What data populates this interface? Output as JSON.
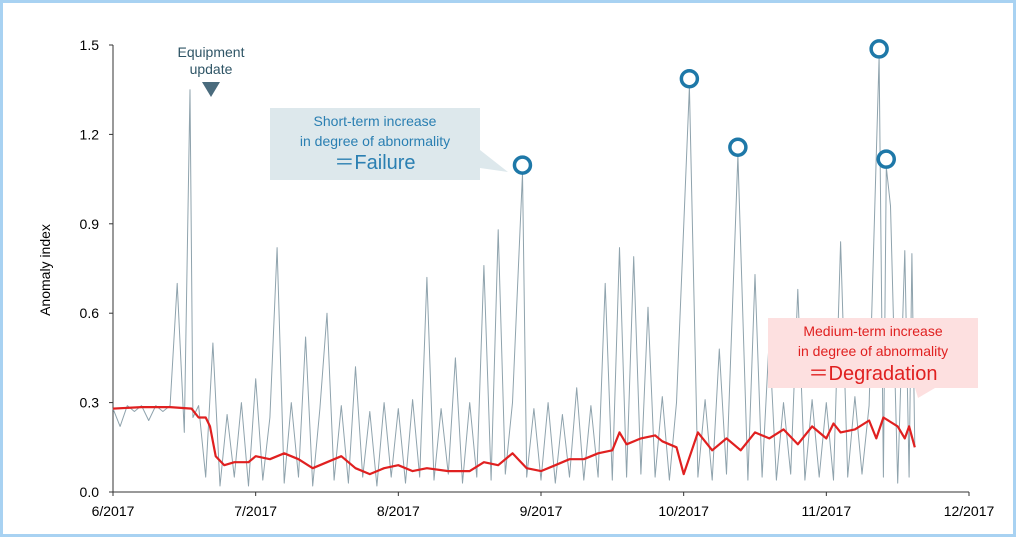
{
  "chart_data": {
    "type": "line",
    "ylabel": "Anomaly index",
    "xlim": [
      6,
      12
    ],
    "xticks": [
      {
        "value": 6,
        "label": "6/2017"
      },
      {
        "value": 7,
        "label": "7/2017"
      },
      {
        "value": 8,
        "label": "8/2017"
      },
      {
        "value": 9,
        "label": "9/2017"
      },
      {
        "value": 10,
        "label": "10/2017"
      },
      {
        "value": 11,
        "label": "11/2017"
      },
      {
        "value": 12,
        "label": "12/2017"
      }
    ],
    "ylim": [
      0,
      1.5
    ],
    "yticks": [
      {
        "value": 0,
        "label": "0.0"
      },
      0.3,
      0.6,
      0.9,
      1.2,
      1.5
    ],
    "series": [
      {
        "color": "#8fa3ad",
        "x": [
          6.0,
          6.05,
          6.1,
          6.15,
          6.2,
          6.25,
          6.3,
          6.35,
          6.4,
          6.45,
          6.5,
          6.54,
          6.56,
          6.6,
          6.65,
          6.7,
          6.75,
          6.8,
          6.85,
          6.9,
          6.95,
          7.0,
          7.05,
          7.1,
          7.15,
          7.2,
          7.25,
          7.3,
          7.35,
          7.4,
          7.45,
          7.5,
          7.55,
          7.6,
          7.65,
          7.7,
          7.75,
          7.8,
          7.85,
          7.9,
          7.95,
          8.0,
          8.05,
          8.1,
          8.15,
          8.2,
          8.25,
          8.3,
          8.35,
          8.4,
          8.45,
          8.5,
          8.55,
          8.6,
          8.65,
          8.7,
          8.75,
          8.8,
          8.87,
          8.9,
          8.95,
          9.0,
          9.05,
          9.1,
          9.15,
          9.2,
          9.25,
          9.3,
          9.35,
          9.4,
          9.45,
          9.5,
          9.55,
          9.6,
          9.65,
          9.7,
          9.75,
          9.8,
          9.85,
          9.9,
          9.95,
          10.04,
          10.1,
          10.15,
          10.2,
          10.25,
          10.3,
          10.38,
          10.45,
          10.5,
          10.55,
          10.6,
          10.65,
          10.7,
          10.75,
          10.8,
          10.85,
          10.9,
          10.95,
          11.0,
          11.05,
          11.1,
          11.15,
          11.2,
          11.25,
          11.3,
          11.37,
          11.4,
          11.42,
          11.45,
          11.5,
          11.55,
          11.58,
          11.6,
          11.62
        ],
        "values": [
          0.28,
          0.22,
          0.29,
          0.27,
          0.29,
          0.24,
          0.29,
          0.27,
          0.29,
          0.7,
          0.2,
          1.35,
          0.25,
          0.29,
          0.05,
          0.5,
          0.02,
          0.26,
          0.05,
          0.3,
          0.02,
          0.38,
          0.04,
          0.25,
          0.82,
          0.03,
          0.3,
          0.05,
          0.52,
          0.02,
          0.28,
          0.6,
          0.04,
          0.29,
          0.03,
          0.42,
          0.05,
          0.27,
          0.02,
          0.3,
          0.05,
          0.28,
          0.03,
          0.31,
          0.05,
          0.72,
          0.04,
          0.28,
          0.06,
          0.45,
          0.03,
          0.3,
          0.05,
          0.76,
          0.04,
          0.88,
          0.06,
          0.3,
          1.07,
          0.05,
          0.28,
          0.04,
          0.3,
          0.03,
          0.26,
          0.05,
          0.35,
          0.04,
          0.29,
          0.05,
          0.7,
          0.04,
          0.82,
          0.05,
          0.79,
          0.06,
          0.62,
          0.05,
          0.32,
          0.04,
          0.3,
          1.36,
          0.05,
          0.31,
          0.04,
          0.48,
          0.06,
          1.13,
          0.04,
          0.73,
          0.05,
          0.52,
          0.04,
          0.3,
          0.06,
          0.68,
          0.04,
          0.31,
          0.05,
          0.3,
          0.04,
          0.84,
          0.05,
          0.32,
          0.06,
          0.29,
          1.46,
          0.05,
          1.09,
          0.96,
          0.03,
          0.81,
          0.05,
          0.8,
          0.15
        ]
      },
      {
        "color": "#e02020",
        "x": [
          6.0,
          6.2,
          6.4,
          6.55,
          6.6,
          6.65,
          6.68,
          6.72,
          6.78,
          6.85,
          6.95,
          7.0,
          7.1,
          7.2,
          7.3,
          7.4,
          7.5,
          7.6,
          7.7,
          7.8,
          7.9,
          8.0,
          8.1,
          8.2,
          8.35,
          8.5,
          8.6,
          8.7,
          8.8,
          8.9,
          9.0,
          9.1,
          9.2,
          9.3,
          9.4,
          9.5,
          9.55,
          9.6,
          9.7,
          9.8,
          9.85,
          9.95,
          10.0,
          10.05,
          10.1,
          10.2,
          10.3,
          10.4,
          10.5,
          10.6,
          10.7,
          10.8,
          10.9,
          11.0,
          11.05,
          11.1,
          11.2,
          11.3,
          11.35,
          11.4,
          11.5,
          11.55,
          11.58,
          11.62
        ],
        "values": [
          0.28,
          0.285,
          0.285,
          0.28,
          0.25,
          0.25,
          0.22,
          0.12,
          0.09,
          0.1,
          0.1,
          0.12,
          0.11,
          0.13,
          0.11,
          0.08,
          0.1,
          0.12,
          0.08,
          0.06,
          0.08,
          0.09,
          0.07,
          0.08,
          0.07,
          0.07,
          0.1,
          0.09,
          0.13,
          0.08,
          0.07,
          0.09,
          0.11,
          0.11,
          0.13,
          0.14,
          0.2,
          0.16,
          0.18,
          0.19,
          0.17,
          0.15,
          0.06,
          0.13,
          0.2,
          0.14,
          0.18,
          0.14,
          0.2,
          0.18,
          0.21,
          0.16,
          0.22,
          0.18,
          0.23,
          0.2,
          0.21,
          0.24,
          0.18,
          0.25,
          0.22,
          0.18,
          0.22,
          0.15
        ]
      }
    ],
    "annotations": [
      {
        "lines": [
          "Equipment",
          "update"
        ]
      },
      {
        "lines": [
          "Short-term increase",
          "in degree of abnormality",
          "＝Failure"
        ]
      },
      {
        "lines": [
          "Medium-term increase",
          "in degree of abnormality",
          "＝Degradation"
        ]
      }
    ]
  }
}
